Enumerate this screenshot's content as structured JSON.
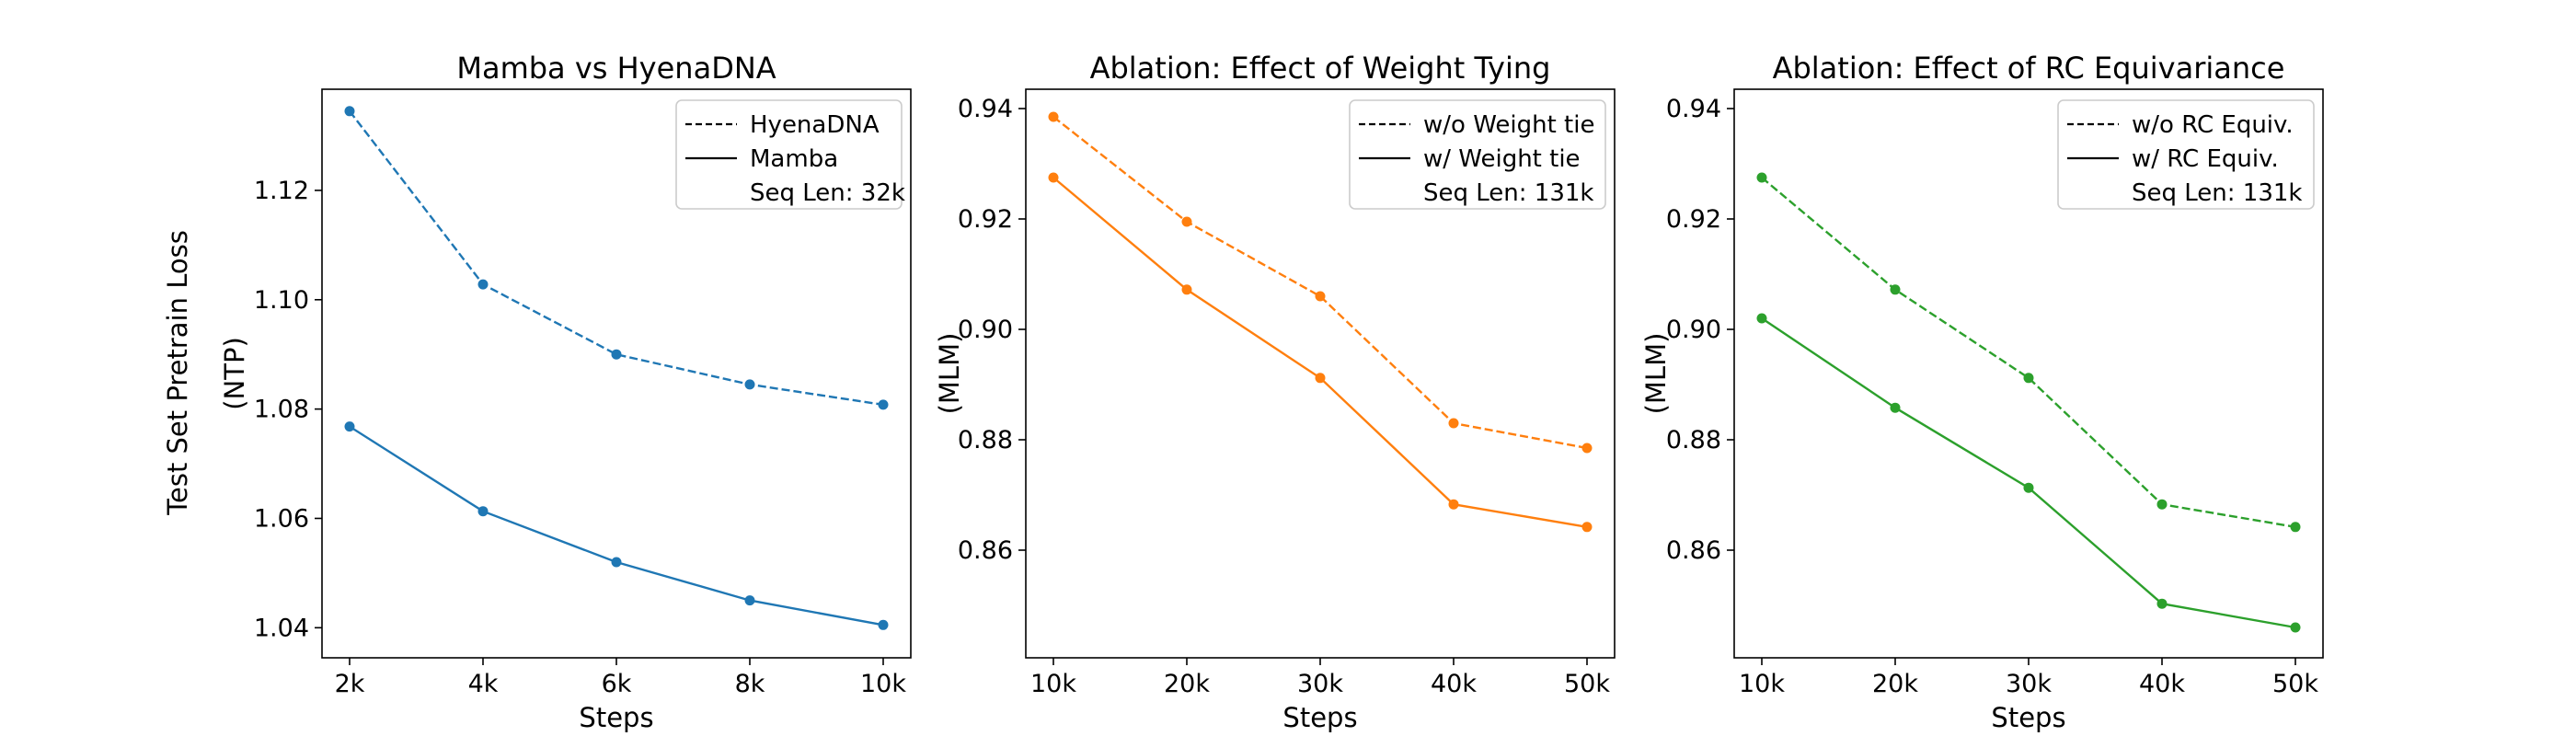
{
  "figure": {
    "shared_ylabel": "Test Set Pretrain Loss"
  },
  "chart_data": [
    {
      "type": "line",
      "title": "Mamba vs HyenaDNA",
      "xlabel": "Steps",
      "ylabel": "(NTP)",
      "categories": [
        "2k",
        "4k",
        "6k",
        "8k",
        "10k"
      ],
      "yticks": [
        "1.04",
        "1.06",
        "1.08",
        "1.10",
        "1.12"
      ],
      "ylim": [
        1.0345,
        1.1385
      ],
      "color": "#1f77b4",
      "series": [
        {
          "name": "HyenaDNA",
          "style": "dashed",
          "values": [
            1.1345,
            1.1028,
            1.09,
            1.0845,
            1.0808
          ]
        },
        {
          "name": "Mamba",
          "style": "solid",
          "values": [
            1.0768,
            1.0613,
            1.052,
            1.045,
            1.0405
          ]
        }
      ],
      "legend_note": "Seq Len: 32k",
      "legend_position": "top-right",
      "grid": false
    },
    {
      "type": "line",
      "title": "Ablation: Effect of Weight Tying",
      "xlabel": "Steps",
      "ylabel": "(MLM)",
      "categories": [
        "10k",
        "20k",
        "30k",
        "40k",
        "50k"
      ],
      "yticks": [
        "0.86",
        "0.88",
        "0.90",
        "0.92",
        "0.94"
      ],
      "ylim": [
        0.8405,
        0.9435
      ],
      "color": "#ff7f0e",
      "series": [
        {
          "name": "w/o Weight tie",
          "style": "dashed",
          "values": [
            0.9385,
            0.9195,
            0.906,
            0.883,
            0.8785
          ]
        },
        {
          "name": "w/ Weight tie",
          "style": "solid",
          "values": [
            0.9275,
            0.9072,
            0.8912,
            0.8683,
            0.8642
          ]
        }
      ],
      "legend_note": "Seq Len: 131k",
      "legend_position": "top-right",
      "grid": false
    },
    {
      "type": "line",
      "title": "Ablation: Effect of RC Equivariance",
      "xlabel": "Steps",
      "ylabel": "(MLM)",
      "categories": [
        "10k",
        "20k",
        "30k",
        "40k",
        "50k"
      ],
      "yticks": [
        "0.86",
        "0.88",
        "0.90",
        "0.92",
        "0.94"
      ],
      "ylim": [
        0.8405,
        0.9435
      ],
      "color": "#2ca02c",
      "series": [
        {
          "name": "w/o RC Equiv.",
          "style": "dashed",
          "values": [
            0.9275,
            0.9072,
            0.8912,
            0.8683,
            0.8642
          ]
        },
        {
          "name": "w/ RC Equiv.",
          "style": "solid",
          "values": [
            0.902,
            0.8858,
            0.8713,
            0.8503,
            0.846
          ]
        }
      ],
      "legend_note": "Seq Len: 131k",
      "legend_position": "top-right",
      "grid": false
    }
  ]
}
